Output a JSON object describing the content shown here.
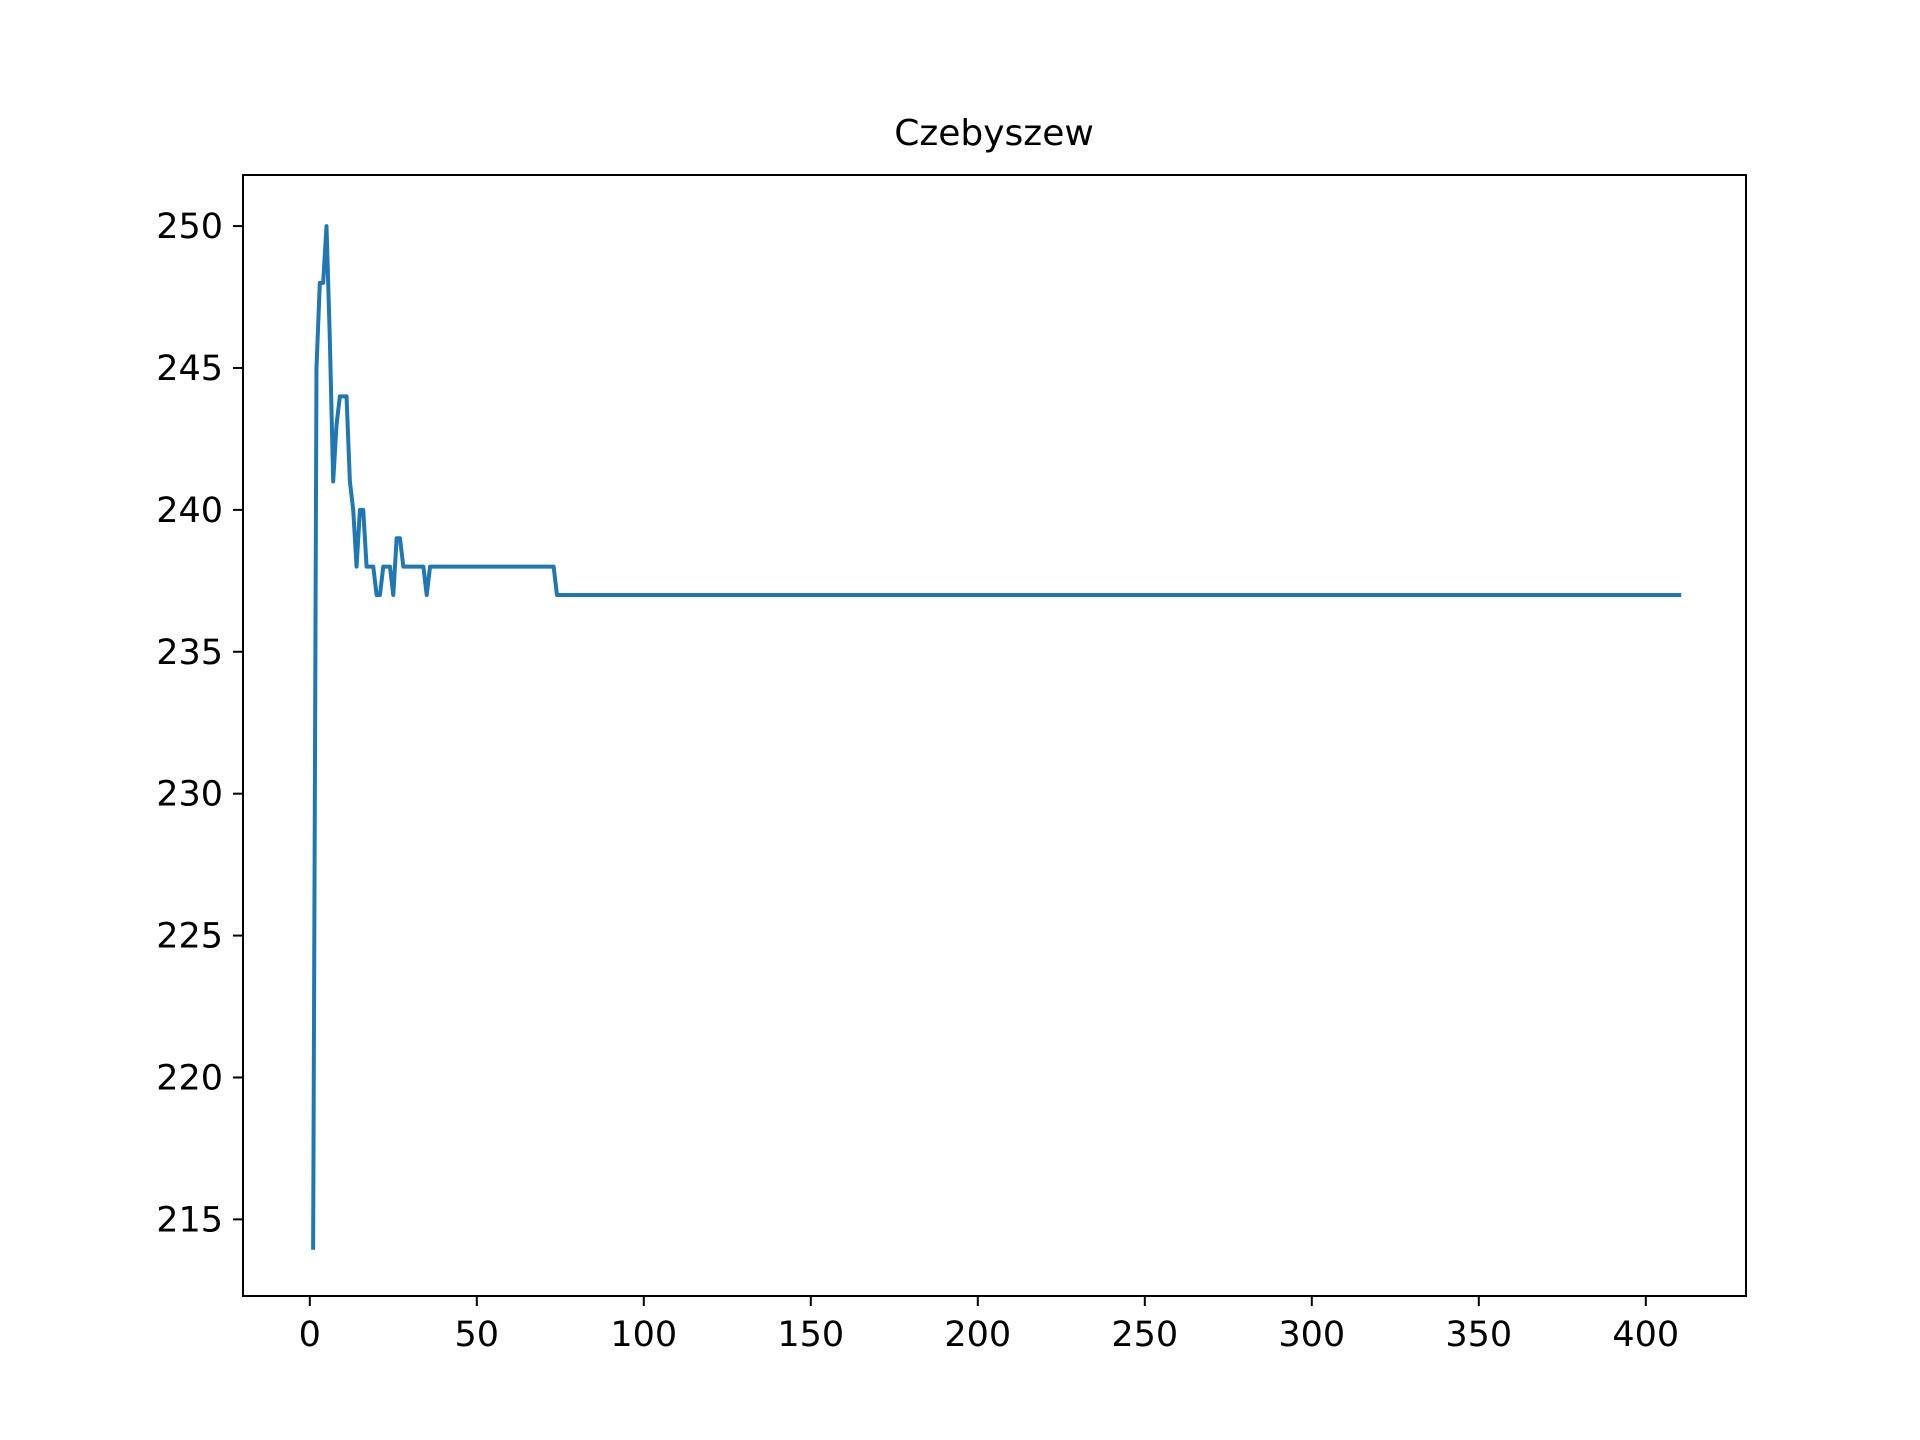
{
  "chart_data": {
    "type": "line",
    "title": "Czebyszew",
    "xlabel": "",
    "ylabel": "",
    "xlim": [
      -20,
      430
    ],
    "ylim": [
      212.3,
      251.8
    ],
    "xticks": [
      0,
      50,
      100,
      150,
      200,
      250,
      300,
      350,
      400
    ],
    "yticks": [
      215,
      220,
      225,
      230,
      235,
      240,
      245,
      250
    ],
    "grid": false,
    "series": [
      {
        "color": "#1f77b4",
        "x": [
          1,
          2,
          3,
          4,
          5,
          6,
          7,
          8,
          9,
          10,
          11,
          12,
          13,
          14,
          15,
          16,
          17,
          18,
          19,
          20,
          21,
          22,
          23,
          24,
          25,
          26,
          27,
          28,
          29,
          30,
          31,
          32,
          33,
          34,
          35,
          36,
          37,
          38,
          72,
          73,
          74,
          410
        ],
        "y": [
          214,
          245,
          248,
          248,
          250,
          246,
          241,
          243,
          244,
          244,
          244,
          241,
          240,
          238,
          240,
          240,
          238,
          238,
          238,
          237,
          237,
          238,
          238,
          238,
          237,
          239,
          239,
          238,
          238,
          238,
          238,
          238,
          238,
          238,
          237,
          238,
          238,
          238,
          238,
          238,
          237,
          237
        ]
      }
    ]
  }
}
